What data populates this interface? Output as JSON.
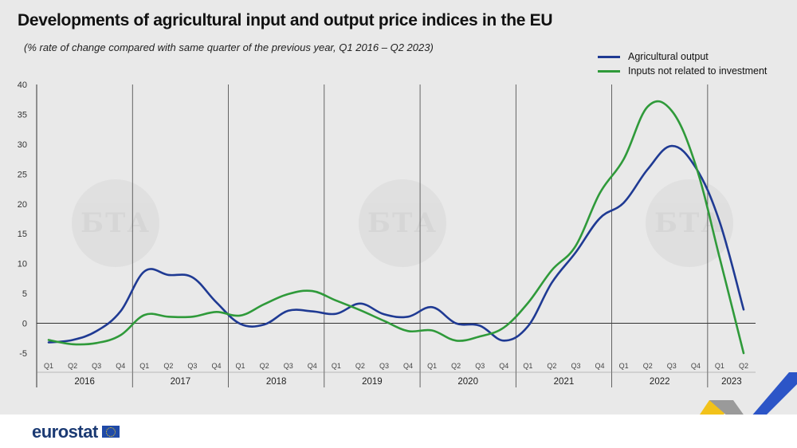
{
  "title": "Developments of agricultural input and output price indices in the EU",
  "subtitle": "(% rate of change compared with same quarter of the previous year, Q1 2016 – Q2 2023)",
  "footer": {
    "brand": "eurostat"
  },
  "watermark_text": "БТА",
  "colors": {
    "output": "#1f3a93",
    "inputs": "#2f9a3a",
    "background": "#e9e9e9",
    "grid": "#555555"
  },
  "chart_data": {
    "type": "line",
    "title": "Developments of agricultural input and output price indices in the EU",
    "subtitle": "(% rate of change compared with same quarter of the previous year, Q1 2016 – Q2 2023)",
    "xlabel": "",
    "ylabel": "",
    "ylim": [
      -5,
      40
    ],
    "yticks": [
      -5,
      0,
      5,
      10,
      15,
      20,
      25,
      30,
      35,
      40
    ],
    "years": [
      "2016",
      "2017",
      "2018",
      "2019",
      "2020",
      "2021",
      "2022",
      "2023"
    ],
    "categories": [
      "Q1",
      "Q2",
      "Q3",
      "Q4",
      "Q1",
      "Q2",
      "Q3",
      "Q4",
      "Q1",
      "Q2",
      "Q3",
      "Q4",
      "Q1",
      "Q2",
      "Q3",
      "Q4",
      "Q1",
      "Q2",
      "Q3",
      "Q4",
      "Q1",
      "Q2",
      "Q3",
      "Q4",
      "Q1",
      "Q2",
      "Q3",
      "Q4",
      "Q1",
      "Q2"
    ],
    "legend_position": "top-right",
    "grid": false,
    "series": [
      {
        "name": "Agricultural output",
        "color": "#1f3a93",
        "values": [
          -3.2,
          -2.8,
          -1.3,
          2.0,
          8.7,
          8.1,
          7.7,
          3.5,
          -0.1,
          -0.2,
          2.1,
          2.0,
          1.6,
          3.3,
          1.5,
          1.1,
          2.7,
          0.0,
          -0.4,
          -2.9,
          -0.5,
          6.8,
          11.9,
          17.6,
          20.2,
          25.8,
          29.7,
          26.1,
          17.0,
          2.3
        ]
      },
      {
        "name": "Inputs not related to investment",
        "color": "#2f9a3a",
        "values": [
          -2.8,
          -3.5,
          -3.3,
          -2.0,
          1.4,
          1.1,
          1.1,
          1.9,
          1.3,
          3.2,
          4.9,
          5.4,
          3.8,
          2.2,
          0.4,
          -1.3,
          -1.2,
          -2.9,
          -2.2,
          -0.7,
          3.4,
          8.9,
          13.0,
          21.8,
          27.5,
          36.3,
          35.6,
          26.5,
          11.0,
          -5.0
        ]
      }
    ]
  }
}
